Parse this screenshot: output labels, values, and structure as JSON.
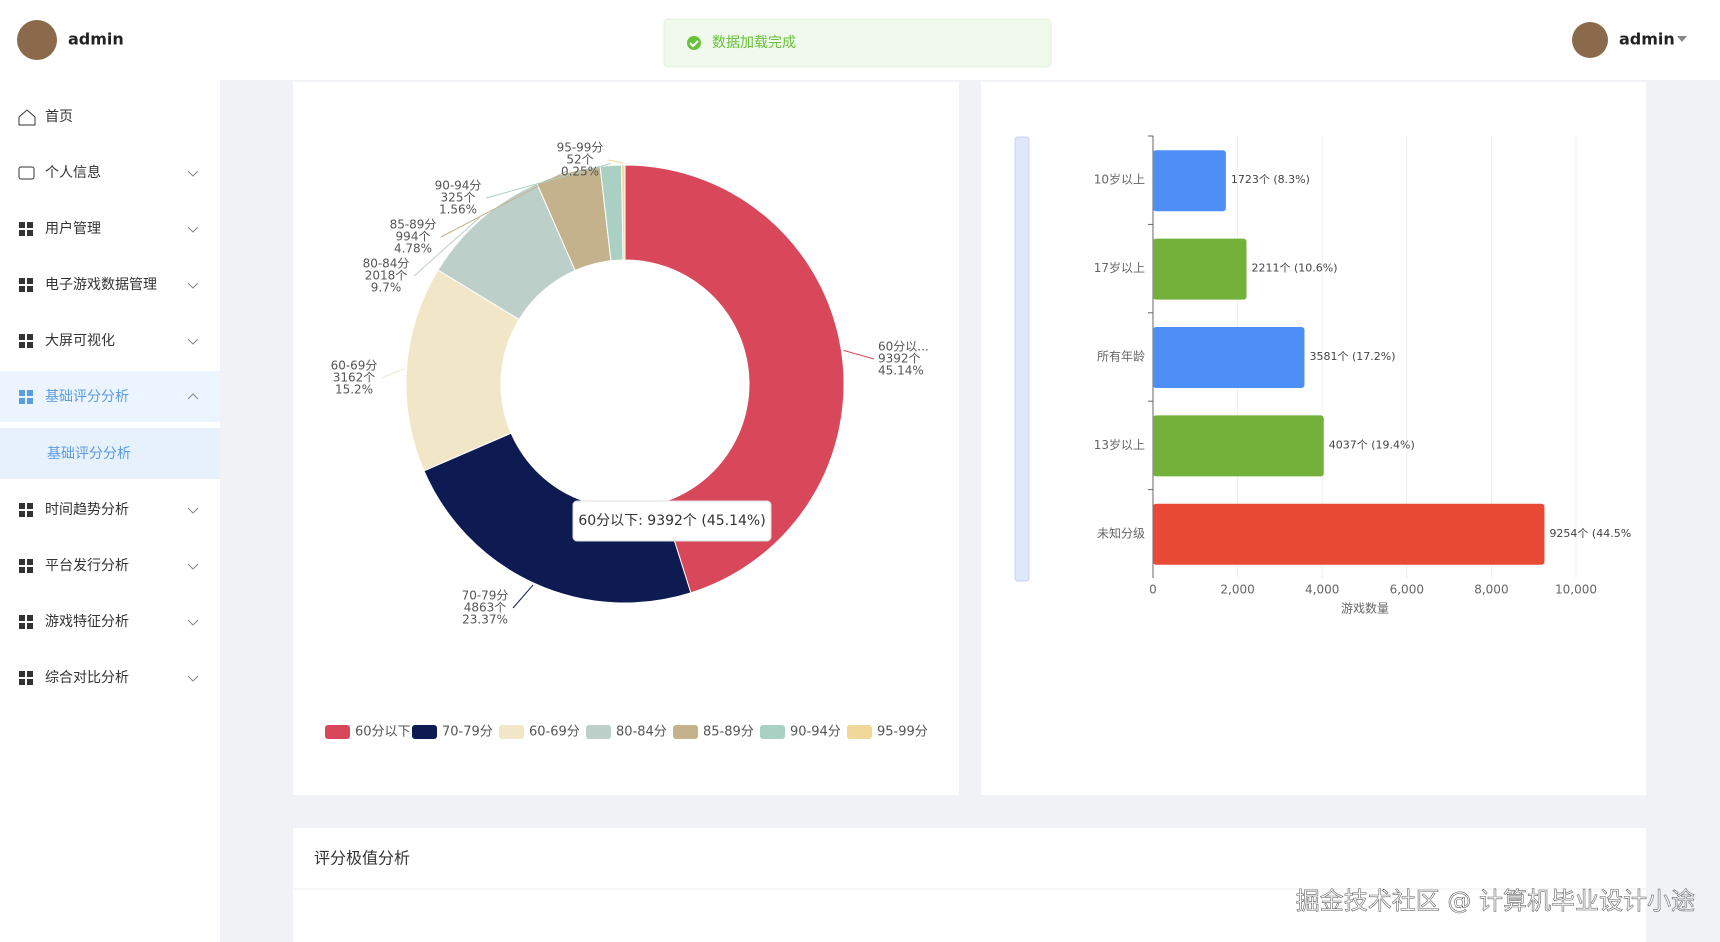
{
  "sidebar": {
    "user": "admin",
    "menu": [
      "首页",
      "个人信息",
      "用户管理",
      "电子游戏数据管理",
      "大屏可视化",
      "基础评分分析",
      "时间趋势分析",
      "平台发行分析",
      "游戏特征分析",
      "综合对比分析"
    ],
    "submenu": [
      "基础评分分析"
    ]
  },
  "header": {
    "toast": "数据加载完成",
    "user": "admin"
  },
  "chart_data": [
    {
      "type": "donut",
      "categories": [
        "60分以下",
        "70-79分",
        "60-69分",
        "80-84分",
        "85-89分",
        "90-94分",
        "95-99分"
      ],
      "label_names": [
        "60分以...",
        "70-79分",
        "60-69分",
        "80-84分",
        "85-89分",
        "90-94分",
        "95-99分"
      ],
      "values": [
        9392,
        4863,
        3162,
        2018,
        994,
        325,
        52
      ],
      "value_labels": [
        "9392个",
        "4863个",
        "3162个",
        "2018个",
        "994个",
        "325个",
        "52个"
      ],
      "percent_labels": [
        "45.14%",
        "23.37%",
        "15.2%",
        "9.7%",
        "4.78%",
        "1.56%",
        "0.25%"
      ],
      "colors": [
        "#d9475a",
        "#0d1b52",
        "#f2e6c9",
        "#bccfc8",
        "#c4b28c",
        "#a9d0c3",
        "#f0d899"
      ],
      "tooltip": "60分以下: 9392个 (45.14%)",
      "legend": "bottom"
    },
    {
      "type": "hbar",
      "categories": [
        "10岁以上",
        "17岁以上",
        "所有年龄",
        "13岁以上",
        "未知分级"
      ],
      "values": [
        1723,
        2211,
        3581,
        4037,
        9254
      ],
      "value_labels": [
        "1723个 (8.3%)",
        "2211个 (10.6%)",
        "3581个 (17.2%)",
        "4037个 (19.4%)",
        "9254个 (44.5%"
      ],
      "colors": [
        "#4e8ef7",
        "#73b13b",
        "#4e8ef7",
        "#73b13b",
        "#e84a35"
      ],
      "xlim": [
        0,
        10000
      ],
      "xticks": [
        0,
        {
          "value": 2000,
          "label": "2,000"
        },
        {
          "value": 4000,
          "label": "4,000"
        },
        {
          "value": 6000,
          "label": "6,000"
        },
        {
          "value": 8000,
          "label": "8,000"
        },
        {
          "value": 10000,
          "label": "10,000"
        }
      ],
      "xlabel": "游戏数量",
      "grid": true
    }
  ],
  "section_title": "评分极值分析",
  "watermark": "掘金技术社区 @ 计算机毕业设计小途"
}
